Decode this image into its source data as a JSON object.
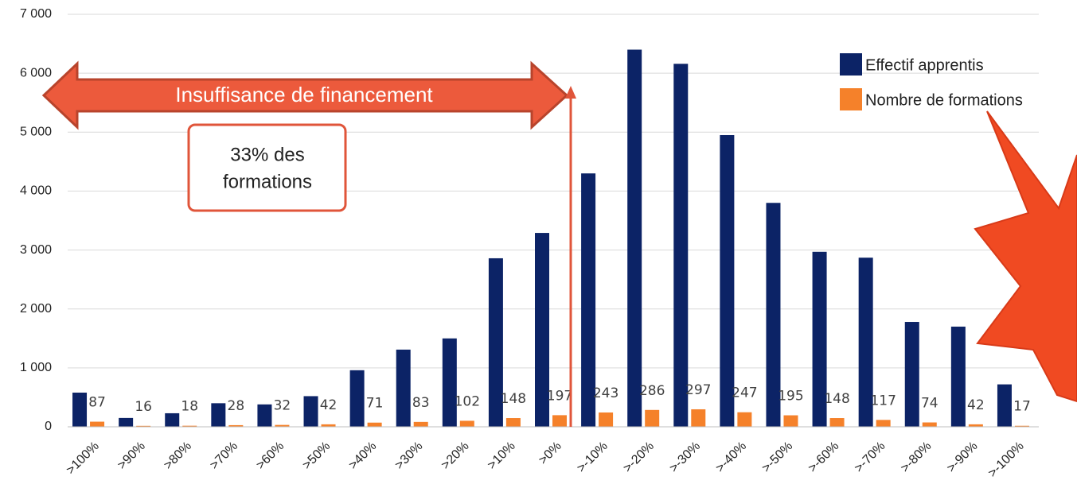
{
  "chart_data": {
    "type": "bar",
    "categories": [
      ">100%",
      ">90%",
      ">80%",
      ">70%",
      ">60%",
      ">50%",
      ">40%",
      ">30%",
      ">20%",
      ">10%",
      ">0%",
      ">-10%",
      ">-20%",
      ">-30%",
      ">-40%",
      ">-50%",
      ">-60%",
      ">-70%",
      ">-80%",
      ">-90%",
      ">-100%"
    ],
    "series": [
      {
        "name": "Effectif apprentis",
        "color": "#0c2366",
        "values": [
          580,
          150,
          230,
          400,
          380,
          520,
          960,
          1310,
          1500,
          2860,
          3290,
          4300,
          6400,
          6160,
          4950,
          3800,
          2970,
          2870,
          1780,
          1700,
          720
        ]
      },
      {
        "name": "Nombre de formations",
        "color": "#f5812a",
        "values": [
          87,
          16,
          18,
          28,
          32,
          42,
          71,
          83,
          102,
          148,
          197,
          243,
          286,
          297,
          247,
          195,
          148,
          117,
          74,
          42,
          17
        ],
        "data_labels": true
      }
    ],
    "ylim": [
      0,
      7000
    ],
    "yticks": [
      0,
      {
        "value": 1000,
        "label": "1 000"
      },
      {
        "value": 2000,
        "label": "2 000"
      },
      {
        "value": 3000,
        "label": "3 000"
      },
      {
        "value": 4000,
        "label": "4 000"
      },
      {
        "value": 5000,
        "label": "5 000"
      },
      {
        "value": 6000,
        "label": "6 000"
      },
      {
        "value": 7000,
        "label": "7 000"
      }
    ],
    "grid": true,
    "legend": "top-right",
    "annotations": {
      "arrow_label": "Insuffisance de financement",
      "box_lines": [
        "33% des",
        "formations"
      ]
    }
  }
}
